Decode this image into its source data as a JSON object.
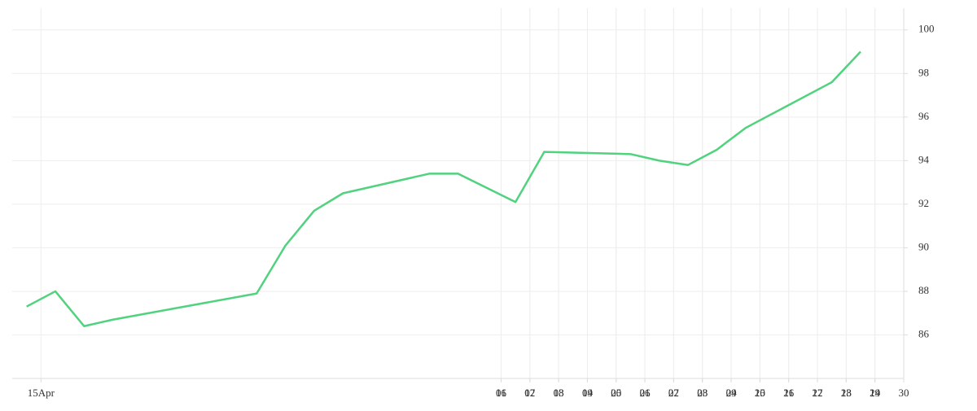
{
  "chart_data": {
    "type": "line",
    "x": [
      -0.5,
      0.5,
      1.5,
      2.5,
      7.5,
      8.5,
      9.5,
      10.5,
      13.5,
      14.5,
      16.5,
      17.5,
      20.5,
      21.5,
      22.5,
      23.5,
      24.5,
      27.5,
      28.5
    ],
    "values": [
      87.3,
      88.0,
      86.4,
      86.7,
      87.9,
      90.1,
      91.7,
      92.5,
      93.4,
      93.4,
      92.1,
      94.4,
      94.3,
      94.0,
      93.8,
      94.5,
      95.5,
      97.6,
      99.0
    ],
    "color": "#50d27e",
    "xlim": [
      -1,
      30
    ],
    "xticks": [
      {
        "value": 0,
        "label": "15Apr"
      },
      16,
      17,
      18,
      19,
      20,
      21,
      22,
      23,
      24,
      25,
      26,
      27,
      28,
      29,
      30,
      {
        "value": 16,
        "label": "01"
      },
      {
        "value": 17,
        "label": "02"
      },
      {
        "value": 18,
        "label": "03"
      },
      {
        "value": 19,
        "label": "04"
      },
      {
        "value": 20,
        "label": "05"
      },
      {
        "value": 21,
        "label": "06"
      },
      {
        "value": 22,
        "label": "07"
      },
      {
        "value": 23,
        "label": "08"
      },
      {
        "value": 24,
        "label": "09"
      },
      {
        "value": 25,
        "label": "10"
      },
      {
        "value": 26,
        "label": "11"
      },
      {
        "value": 27,
        "label": "12"
      },
      {
        "value": 28,
        "label": "13"
      },
      {
        "value": 29,
        "label": "14"
      }
    ],
    "ylim": [
      84,
      101
    ],
    "yticks": [
      86,
      88,
      90,
      92,
      94,
      96,
      98,
      100
    ],
    "grid": true
  }
}
